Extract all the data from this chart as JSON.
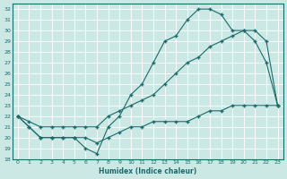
{
  "xlabel": "Humidex (Indice chaleur)",
  "bg_color": "#cce8e4",
  "line_color": "#1a6b6b",
  "grid_color": "#ffffff",
  "xlim": [
    -0.5,
    23.5
  ],
  "ylim": [
    18,
    32.5
  ],
  "xticks": [
    0,
    1,
    2,
    3,
    4,
    5,
    6,
    7,
    8,
    9,
    10,
    11,
    12,
    13,
    14,
    15,
    16,
    17,
    18,
    19,
    20,
    21,
    22,
    23
  ],
  "yticks": [
    18,
    19,
    20,
    21,
    22,
    23,
    24,
    25,
    26,
    27,
    28,
    29,
    30,
    31,
    32
  ],
  "curve1_x": [
    0,
    1,
    2,
    3,
    4,
    5,
    6,
    7,
    8,
    9,
    10,
    11,
    12,
    13,
    14,
    15,
    16,
    17,
    18,
    19,
    20,
    21,
    22,
    23
  ],
  "curve1_y": [
    22,
    21,
    20,
    20,
    20,
    20,
    19,
    18.5,
    21,
    22,
    24,
    25,
    27,
    29,
    29.5,
    31,
    32,
    32,
    31.5,
    30,
    30,
    29,
    27,
    23
  ],
  "curve2_x": [
    0,
    1,
    2,
    3,
    4,
    5,
    6,
    7,
    8,
    9,
    10,
    11,
    12,
    13,
    14,
    15,
    16,
    17,
    18,
    19,
    20,
    21,
    22,
    23
  ],
  "curve2_y": [
    22,
    21.5,
    21,
    21,
    21,
    21,
    21,
    21,
    22,
    22.5,
    23,
    23.5,
    24,
    25,
    26,
    27,
    27.5,
    28.5,
    29,
    29.5,
    30,
    30,
    29,
    23
  ],
  "curve3_x": [
    0,
    1,
    2,
    3,
    4,
    5,
    6,
    7,
    8,
    9,
    10,
    11,
    12,
    13,
    14,
    15,
    16,
    17,
    18,
    19,
    20,
    21,
    22,
    23
  ],
  "curve3_y": [
    22,
    21,
    20,
    20,
    20,
    20,
    20,
    19.5,
    20,
    20.5,
    21,
    21,
    21.5,
    21.5,
    21.5,
    21.5,
    22,
    22.5,
    22.5,
    23,
    23,
    23,
    23,
    23
  ]
}
